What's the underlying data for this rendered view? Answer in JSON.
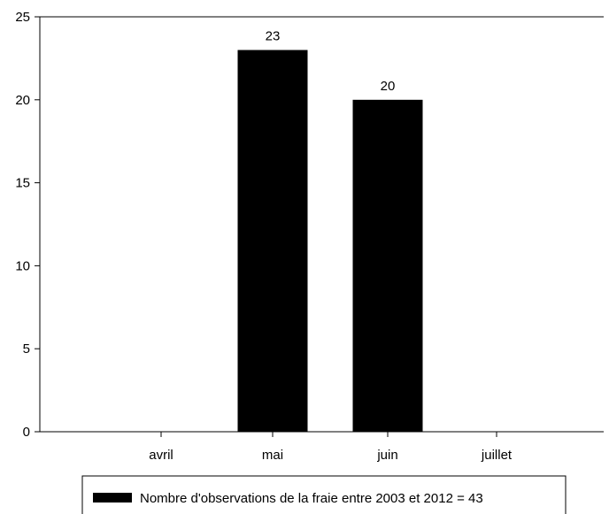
{
  "chart_data": {
    "type": "bar",
    "title": "",
    "xlabel": "",
    "ylabel": "",
    "categories": [
      "avril",
      "mai",
      "juin",
      "juillet"
    ],
    "values": [
      0,
      23,
      20,
      0
    ],
    "data_labels": [
      "",
      "23",
      "20",
      ""
    ],
    "ylim": [
      0,
      25
    ],
    "yticks": [
      0,
      5,
      10,
      15,
      20,
      25
    ],
    "ytick_labels": [
      "0",
      "5",
      "10",
      "15",
      "20",
      "25"
    ],
    "grid": false,
    "bar_color": "#000000",
    "legend": {
      "position": "bottom-center",
      "entries": [
        {
          "label": "Nombre d'observations de la fraie entre 2003 et 2012 = 43",
          "color": "#000000"
        }
      ]
    }
  }
}
